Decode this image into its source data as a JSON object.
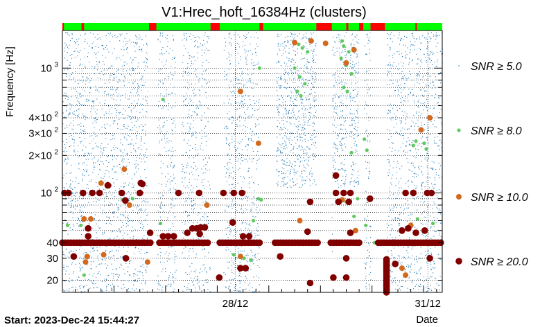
{
  "chart_data": {
    "type": "scatter",
    "title": "V1:Hrec_hoft_16384Hz (clusters)",
    "ylabel": "Frequency [Hz]",
    "xlabel": "Date",
    "yscale": "log",
    "ylim": [
      16,
      2000
    ],
    "xlim_days": [
      0,
      7.36
    ],
    "y_ticks": [
      {
        "value": 20,
        "label": "20"
      },
      {
        "value": 30,
        "label": "30"
      },
      {
        "value": 40,
        "label": "40"
      },
      {
        "value": 100,
        "label": "10",
        "exp": "2"
      },
      {
        "value": 200,
        "label": "2×10",
        "exp": "2"
      },
      {
        "value": 300,
        "label": "3×10",
        "exp": "2"
      },
      {
        "value": 400,
        "label": "4×10",
        "exp": "2"
      },
      {
        "value": 1000,
        "label": "10",
        "exp": "3"
      }
    ],
    "x_ticks": [
      {
        "day": 3.35,
        "label": "28/12"
      },
      {
        "day": 7.08,
        "label": "31/12"
      }
    ],
    "start_label": "Start: 2023-Dec-24 15:44:27",
    "segment_bar": {
      "on_color": "#00ff00",
      "off_color": "#ff0000",
      "off_intervals_days": [
        [
          0.0,
          0.03
        ],
        [
          0.37,
          0.42
        ],
        [
          1.68,
          1.82
        ],
        [
          2.87,
          3.05
        ],
        [
          3.82,
          3.89
        ],
        [
          4.92,
          5.22
        ],
        [
          5.5,
          5.54
        ],
        [
          5.75,
          5.83
        ],
        [
          5.97,
          6.25
        ],
        [
          6.84,
          6.87
        ]
      ]
    },
    "data_gaps_days": [
      [
        1.65,
        1.84
      ],
      [
        2.2,
        2.31
      ],
      [
        2.86,
        3.12
      ],
      [
        3.82,
        4.13
      ],
      [
        4.92,
        5.22
      ],
      [
        5.51,
        5.56
      ],
      [
        5.75,
        5.85
      ],
      [
        5.97,
        6.28
      ]
    ],
    "legend": [
      {
        "label": "SNR ≥ 5.0",
        "color": "#1f77b4"
      },
      {
        "label": "SNR ≥ 8.0",
        "color": "#5fc95f"
      },
      {
        "label": "SNR ≥ 10.0",
        "color": "#d2691e"
      },
      {
        "label": "SNR ≥ 20.0",
        "color": "#800000"
      }
    ],
    "series": [
      {
        "name": "SNR ≥ 8.0",
        "color": "#5fc95f",
        "points": [
          [
            4.58,
            1550
          ],
          [
            4.65,
            1450
          ],
          [
            4.75,
            1350
          ],
          [
            5.42,
            1650
          ],
          [
            5.45,
            1500
          ],
          [
            5.55,
            1350
          ],
          [
            5.4,
            1200
          ],
          [
            5.5,
            1050
          ],
          [
            5.6,
            900
          ],
          [
            4.5,
            1000
          ],
          [
            4.6,
            850
          ],
          [
            4.7,
            750
          ],
          [
            4.55,
            650
          ],
          [
            4.62,
            600
          ],
          [
            5.45,
            700
          ],
          [
            5.52,
            650
          ],
          [
            3.82,
            1000
          ],
          [
            1.95,
            560
          ],
          [
            5.9,
            220
          ],
          [
            5.85,
            270
          ],
          [
            6.8,
            240
          ],
          [
            6.85,
            260
          ],
          [
            7.01,
            250
          ],
          [
            7.05,
            225
          ],
          [
            5.6,
            210
          ],
          [
            1.16,
            88
          ],
          [
            1.36,
            90
          ],
          [
            5.5,
            85
          ],
          [
            3.85,
            88
          ],
          [
            3.8,
            90
          ],
          [
            0.1,
            55
          ],
          [
            0.36,
            55
          ],
          [
            1.9,
            57
          ],
          [
            3.7,
            60
          ],
          [
            7.18,
            57
          ],
          [
            6.88,
            62
          ],
          [
            5.65,
            65
          ],
          [
            3.32,
            32
          ],
          [
            3.52,
            30
          ],
          [
            3.65,
            29
          ],
          [
            0.42,
            22
          ],
          [
            5.88,
            55
          ],
          [
            6.05,
            40
          ],
          [
            5.72,
            90
          ]
        ]
      },
      {
        "name": "SNR ≥ 10.0",
        "color": "#d2691e",
        "points": [
          [
            4.5,
            1600
          ],
          [
            4.82,
            1650
          ],
          [
            5.1,
            1580
          ],
          [
            5.65,
            1400
          ],
          [
            5.5,
            1100
          ],
          [
            3.45,
            650
          ],
          [
            3.8,
            250
          ],
          [
            1.2,
            155
          ],
          [
            0.75,
            120
          ],
          [
            0.9,
            115
          ],
          [
            1.3,
            80
          ],
          [
            2.8,
            80
          ],
          [
            5.42,
            88
          ],
          [
            7.12,
            400
          ],
          [
            6.95,
            320
          ],
          [
            0.42,
            62
          ],
          [
            0.55,
            62
          ],
          [
            4.6,
            60
          ],
          [
            5.68,
            50
          ],
          [
            6.75,
            55
          ],
          [
            0.45,
            28
          ],
          [
            1.65,
            28
          ],
          [
            0.48,
            31
          ],
          [
            0.8,
            32
          ],
          [
            3.45,
            31
          ],
          [
            6.58,
            25
          ],
          [
            6.65,
            22
          ]
        ]
      },
      {
        "name": "SNR ≥ 20.0",
        "color": "#800000",
        "points": [
          [
            0.04,
            100
          ],
          [
            0.12,
            100
          ],
          [
            0.4,
            100
          ],
          [
            0.58,
            100
          ],
          [
            0.72,
            100
          ],
          [
            1.15,
            100
          ],
          [
            1.5,
            100
          ],
          [
            2.25,
            100
          ],
          [
            2.65,
            100
          ],
          [
            3.12,
            100
          ],
          [
            3.32,
            100
          ],
          [
            3.48,
            100
          ],
          [
            5.3,
            100
          ],
          [
            5.45,
            100
          ],
          [
            5.58,
            100
          ],
          [
            6.65,
            100
          ],
          [
            6.8,
            100
          ],
          [
            7.07,
            100
          ],
          [
            7.15,
            100
          ],
          [
            0.88,
            115
          ],
          [
            1.52,
            120
          ],
          [
            1.55,
            118
          ],
          [
            1.22,
            87
          ],
          [
            0.5,
            52
          ],
          [
            0.5,
            45
          ],
          [
            2.42,
            48
          ],
          [
            2.52,
            52
          ],
          [
            2.6,
            52
          ],
          [
            2.68,
            53
          ],
          [
            2.76,
            53
          ],
          [
            2.66,
            47
          ],
          [
            3.3,
            58
          ],
          [
            1.7,
            48
          ],
          [
            1.95,
            45
          ],
          [
            2.05,
            45
          ],
          [
            2.16,
            45
          ],
          [
            3.5,
            45
          ],
          [
            3.62,
            45
          ],
          [
            6.7,
            52
          ],
          [
            4.8,
            85
          ],
          [
            5.35,
            85
          ],
          [
            5.55,
            85
          ],
          [
            5.96,
            90
          ],
          [
            4.75,
            49
          ],
          [
            5.3,
            138
          ],
          [
            5.58,
            48
          ],
          [
            6.58,
            50
          ],
          [
            6.85,
            48
          ],
          [
            7.02,
            50
          ],
          [
            0.22,
            31
          ],
          [
            1.23,
            30
          ],
          [
            4.22,
            31
          ],
          [
            5.5,
            30
          ],
          [
            7.12,
            30
          ],
          [
            3.45,
            25
          ],
          [
            3.55,
            25
          ],
          [
            6.45,
            27
          ],
          [
            3.04,
            21
          ],
          [
            4.8,
            19
          ],
          [
            5.25,
            21
          ],
          [
            5.5,
            21
          ]
        ]
      }
    ],
    "band_40hz": {
      "freq": 40,
      "day_ranges": [
        [
          0.0,
          1.75
        ],
        [
          1.88,
          2.86
        ],
        [
          3.05,
          3.85
        ],
        [
          4.12,
          4.95
        ],
        [
          5.2,
          5.75
        ],
        [
          6.12,
          7.36
        ]
      ],
      "snr": "SNR ≥ 20.0"
    },
    "burst_column": {
      "day": 6.28,
      "freq_range": [
        16,
        30
      ],
      "snr": "SNR ≥ 20.0"
    }
  }
}
